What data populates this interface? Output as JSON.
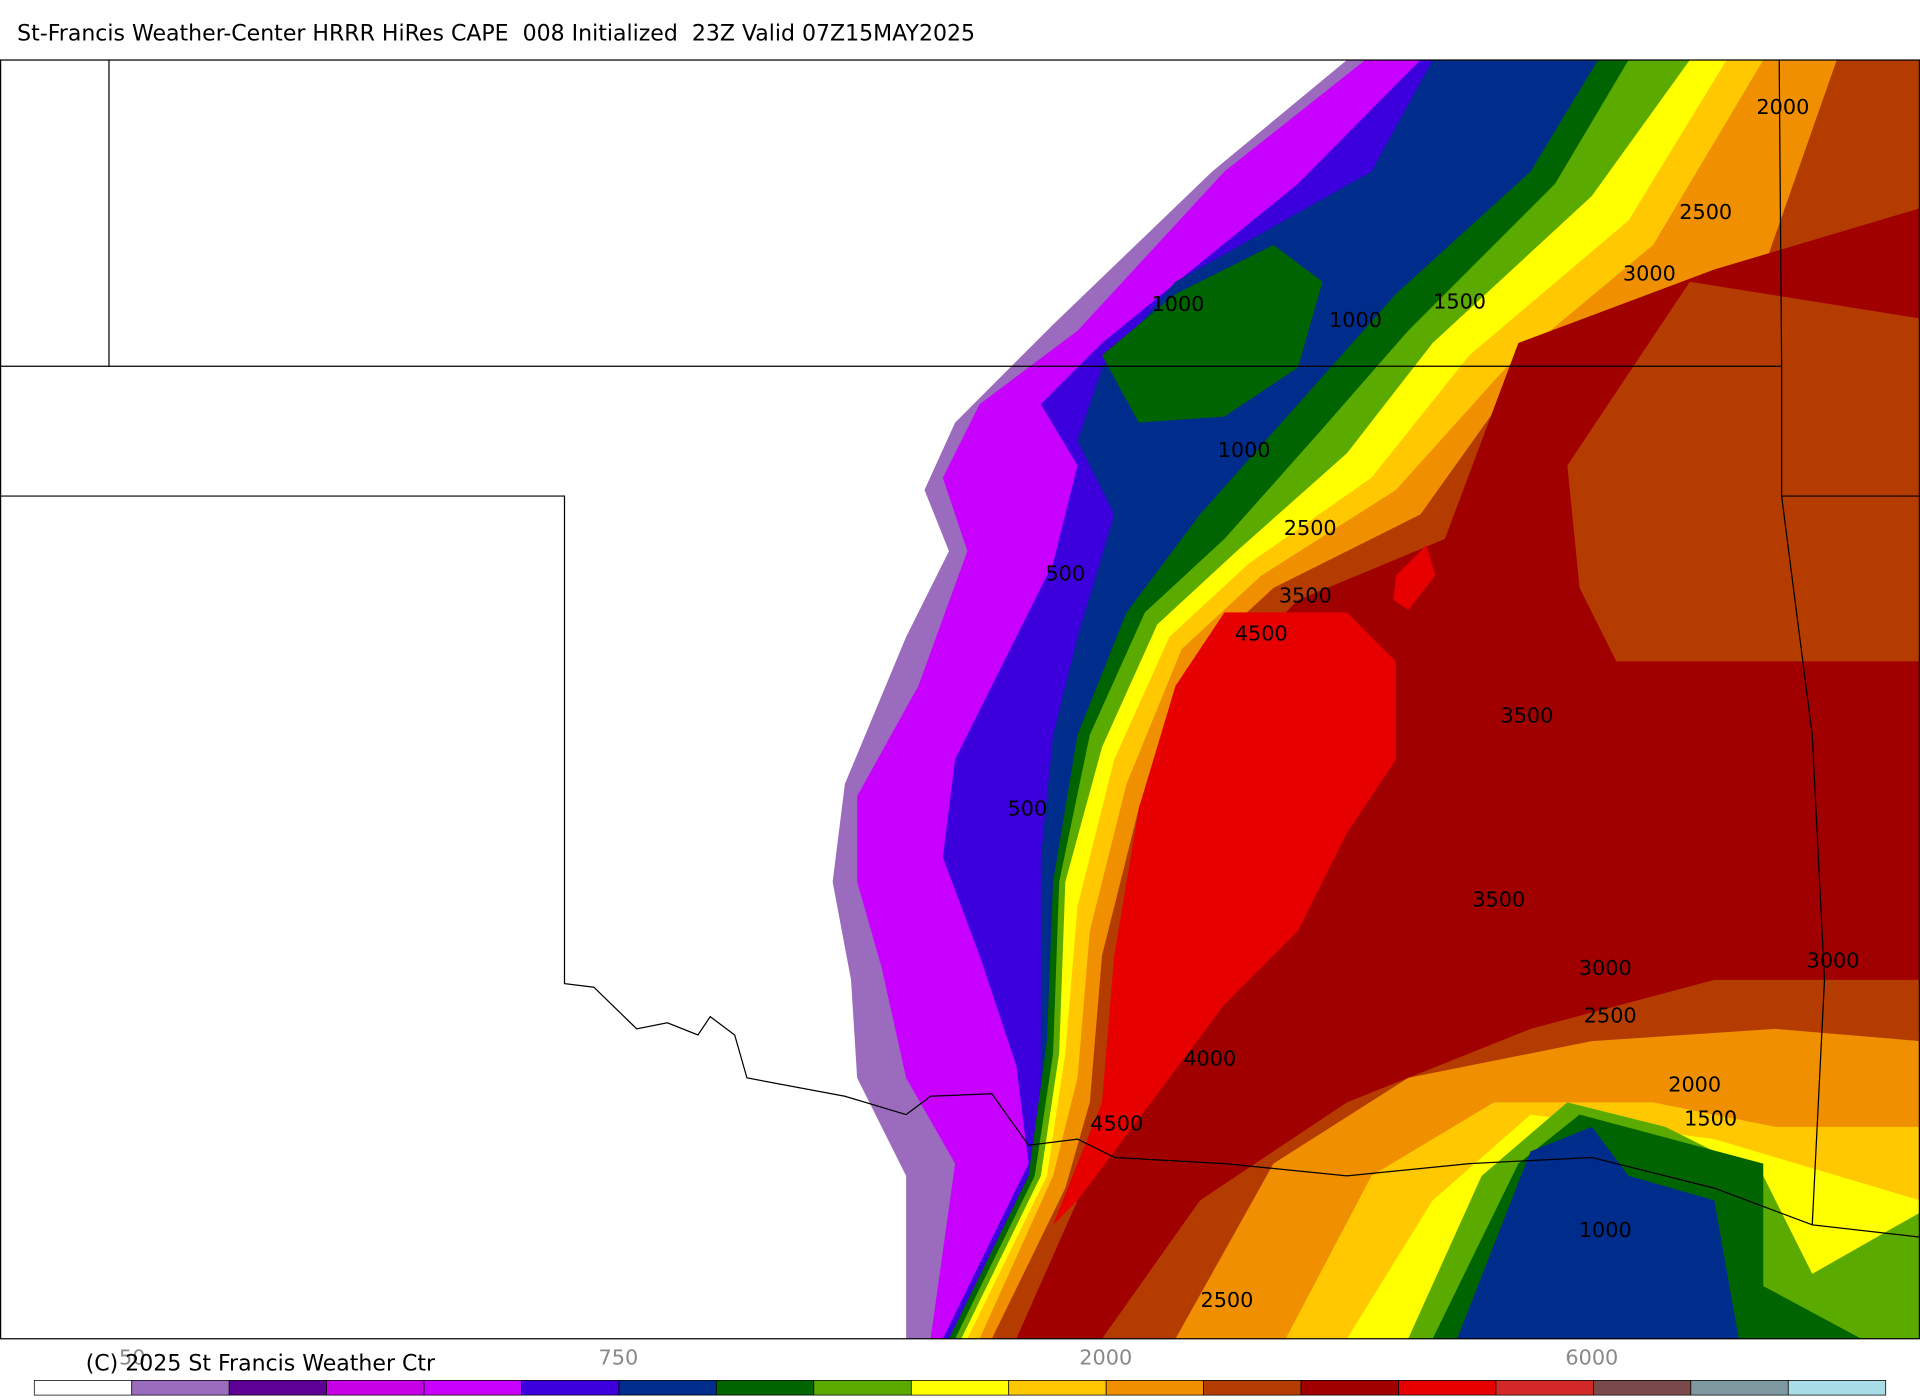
{
  "header": {
    "title": "St-Francis Weather-Center HRRR HiRes CAPE  008 Initialized  23Z Valid 07Z15MAY2025"
  },
  "map": {
    "contour_labels": [
      "2000",
      "2500",
      "3000",
      "1000",
      "1000",
      "1500",
      "1000",
      "2500",
      "500",
      "3500",
      "4500",
      "3500",
      "500",
      "3500",
      "3000",
      "3000",
      "2500",
      "4000",
      "2000",
      "1500",
      "4500",
      "1000",
      "2500"
    ]
  },
  "colorbar": {
    "colors": [
      "#ffffff",
      "#9b6bbd",
      "#5f0094",
      "#c800e6",
      "#c800ff",
      "#3c00dc",
      "#002c8c",
      "#006400",
      "#5aaa00",
      "#ffff00",
      "#ffc800",
      "#f09000",
      "#b43c00",
      "#a00000",
      "#e60000",
      "#d22828",
      "#7a4a4a",
      "#7e9aa0",
      "#a8dce6"
    ],
    "tick_labels": [
      "50",
      "750",
      "2000",
      "6000"
    ]
  },
  "footer": {
    "copyright": "(C) 2025 St Francis Weather Ctr"
  }
}
